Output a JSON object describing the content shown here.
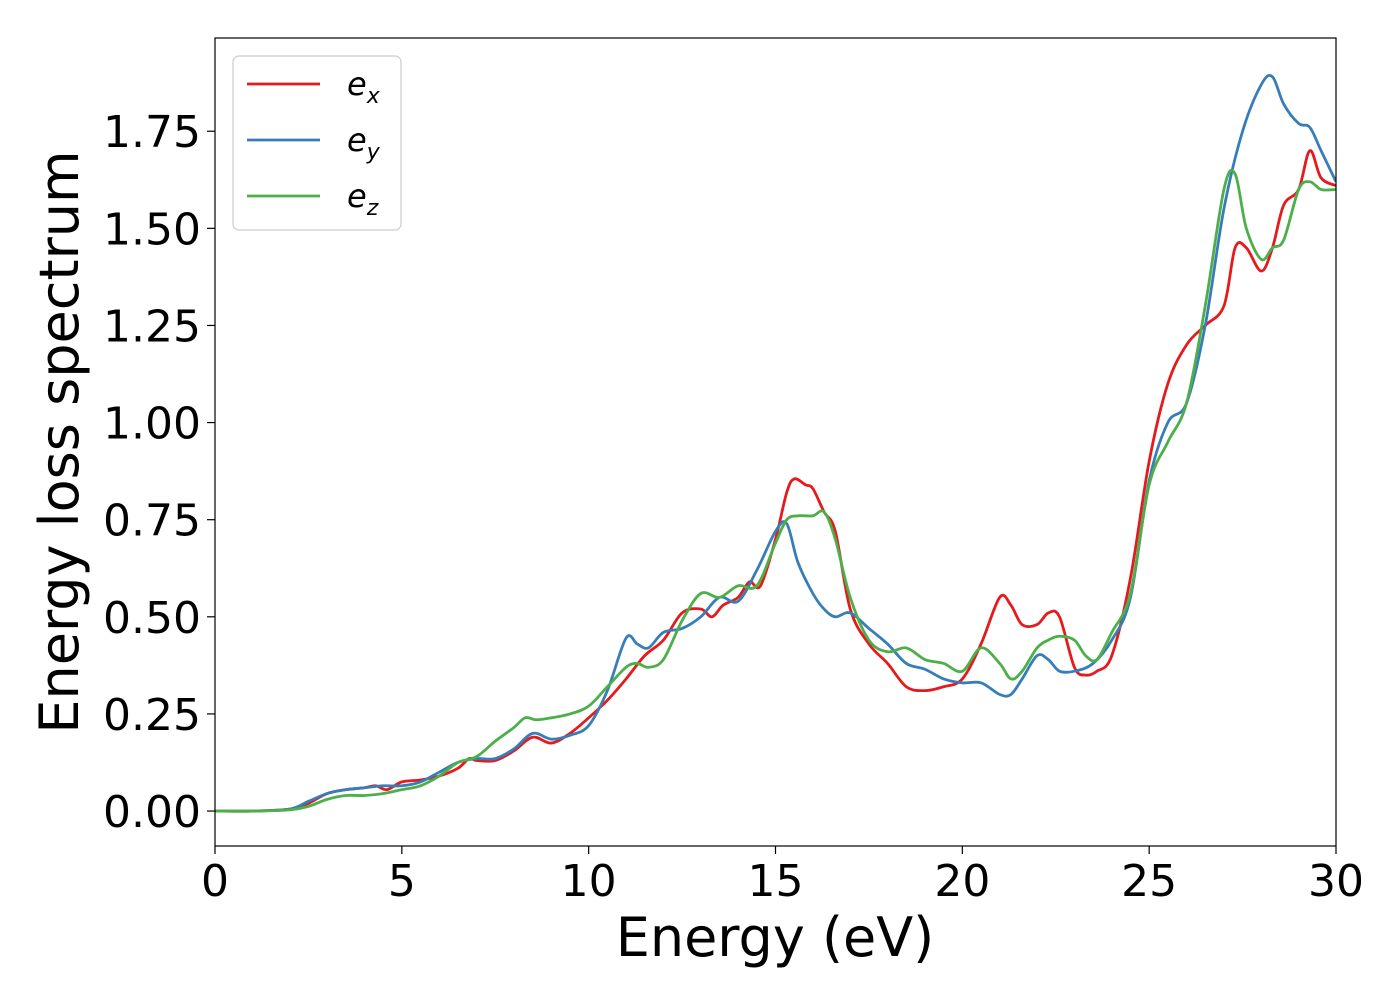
{
  "chart_data": {
    "type": "line",
    "title": "",
    "xlabel": "Energy (eV)",
    "ylabel": "Energy loss spectrum",
    "xlim": [
      0,
      30
    ],
    "ylim": [
      -0.09,
      1.99
    ],
    "xticks": [
      "0",
      "5",
      "10",
      "15",
      "20",
      "25",
      "30"
    ],
    "yticks": [
      "0.00",
      "0.25",
      "0.50",
      "0.75",
      "1.00",
      "1.25",
      "1.50",
      "1.75"
    ],
    "grid": false,
    "legend_position": "top-left",
    "series": [
      {
        "name": "e_x",
        "label_base": "e",
        "label_sub": "x",
        "color": "#e41a1c",
        "x": [
          0,
          1,
          2,
          2.5,
          3,
          3.5,
          4,
          4.3,
          4.6,
          5,
          5.5,
          6,
          6.5,
          6.8,
          7,
          7.5,
          8,
          8.5,
          9,
          9.5,
          10,
          10.5,
          11,
          11.5,
          12,
          12.5,
          13,
          13.3,
          13.6,
          14,
          14.3,
          14.6,
          15,
          15.3,
          15.5,
          15.8,
          16,
          16.3,
          16.6,
          17,
          17.5,
          18,
          18.5,
          19,
          19.5,
          20,
          20.5,
          21,
          21.3,
          21.6,
          22,
          22.3,
          22.6,
          23,
          23.3,
          23.6,
          24,
          24.5,
          25,
          25.5,
          26,
          26.5,
          27,
          27.3,
          27.6,
          28,
          28.3,
          28.6,
          29,
          29.3,
          29.6,
          30
        ],
        "y": [
          0,
          0,
          0.005,
          0.02,
          0.045,
          0.055,
          0.06,
          0.065,
          0.055,
          0.075,
          0.08,
          0.09,
          0.11,
          0.135,
          0.13,
          0.13,
          0.155,
          0.19,
          0.175,
          0.2,
          0.24,
          0.285,
          0.34,
          0.4,
          0.44,
          0.51,
          0.52,
          0.5,
          0.53,
          0.55,
          0.59,
          0.58,
          0.7,
          0.82,
          0.855,
          0.84,
          0.83,
          0.77,
          0.72,
          0.52,
          0.43,
          0.38,
          0.32,
          0.31,
          0.32,
          0.34,
          0.43,
          0.55,
          0.53,
          0.48,
          0.48,
          0.51,
          0.5,
          0.37,
          0.35,
          0.36,
          0.4,
          0.6,
          0.9,
          1.1,
          1.2,
          1.25,
          1.3,
          1.45,
          1.45,
          1.39,
          1.45,
          1.56,
          1.6,
          1.7,
          1.63,
          1.61
        ]
      },
      {
        "name": "e_y",
        "label_base": "e",
        "label_sub": "y",
        "color": "#377eb8",
        "x": [
          0,
          1,
          2,
          2.5,
          3,
          3.5,
          4,
          4.5,
          5,
          5.5,
          6,
          6.5,
          7,
          7.5,
          8,
          8.5,
          9,
          9.5,
          10,
          10.5,
          11,
          11.3,
          11.6,
          12,
          12.5,
          13,
          13.5,
          14,
          14.5,
          15,
          15.3,
          15.6,
          16,
          16.3,
          16.6,
          17,
          17.5,
          18,
          18.5,
          19,
          19.5,
          20,
          20.5,
          21,
          21.3,
          21.6,
          22,
          22.3,
          22.6,
          23,
          23.5,
          24,
          24.5,
          25,
          25.5,
          26,
          26.5,
          27,
          27.5,
          28,
          28.3,
          28.6,
          29,
          29.3,
          29.6,
          30
        ],
        "y": [
          0,
          0,
          0.005,
          0.025,
          0.045,
          0.055,
          0.06,
          0.065,
          0.065,
          0.075,
          0.1,
          0.125,
          0.135,
          0.135,
          0.16,
          0.2,
          0.185,
          0.195,
          0.22,
          0.31,
          0.445,
          0.43,
          0.42,
          0.46,
          0.47,
          0.5,
          0.55,
          0.54,
          0.62,
          0.72,
          0.74,
          0.64,
          0.56,
          0.52,
          0.5,
          0.51,
          0.47,
          0.43,
          0.38,
          0.365,
          0.34,
          0.33,
          0.33,
          0.3,
          0.3,
          0.34,
          0.4,
          0.39,
          0.36,
          0.36,
          0.38,
          0.44,
          0.55,
          0.85,
          1.0,
          1.05,
          1.25,
          1.55,
          1.75,
          1.87,
          1.89,
          1.82,
          1.77,
          1.76,
          1.7,
          1.62
        ]
      },
      {
        "name": "e_z",
        "label_base": "e",
        "label_sub": "z",
        "color": "#4daf4a",
        "x": [
          0,
          1,
          2,
          2.5,
          3,
          3.5,
          4,
          4.5,
          5,
          5.5,
          6,
          6.5,
          7,
          7.5,
          8,
          8.3,
          8.6,
          9,
          9.5,
          10,
          10.5,
          11,
          11.3,
          11.6,
          12,
          12.5,
          13,
          13.5,
          14,
          14.5,
          15,
          15.3,
          15.6,
          16,
          16.3,
          16.6,
          17,
          17.5,
          18,
          18.5,
          19,
          19.5,
          20,
          20.5,
          21,
          21.3,
          21.6,
          22,
          22.3,
          22.6,
          23,
          23.3,
          23.6,
          24,
          24.5,
          25,
          25.5,
          26,
          26.5,
          27,
          27.3,
          27.6,
          28,
          28.3,
          28.6,
          29,
          29.3,
          29.6,
          30
        ],
        "y": [
          0,
          0,
          0.003,
          0.012,
          0.03,
          0.04,
          0.04,
          0.045,
          0.055,
          0.065,
          0.09,
          0.125,
          0.14,
          0.18,
          0.215,
          0.24,
          0.235,
          0.24,
          0.25,
          0.27,
          0.32,
          0.37,
          0.38,
          0.37,
          0.39,
          0.49,
          0.56,
          0.55,
          0.58,
          0.58,
          0.69,
          0.75,
          0.76,
          0.76,
          0.77,
          0.7,
          0.55,
          0.44,
          0.41,
          0.42,
          0.39,
          0.38,
          0.36,
          0.42,
          0.38,
          0.34,
          0.36,
          0.42,
          0.44,
          0.45,
          0.44,
          0.4,
          0.39,
          0.46,
          0.56,
          0.84,
          0.95,
          1.05,
          1.3,
          1.6,
          1.64,
          1.5,
          1.42,
          1.45,
          1.47,
          1.6,
          1.62,
          1.6,
          1.6
        ]
      }
    ]
  }
}
